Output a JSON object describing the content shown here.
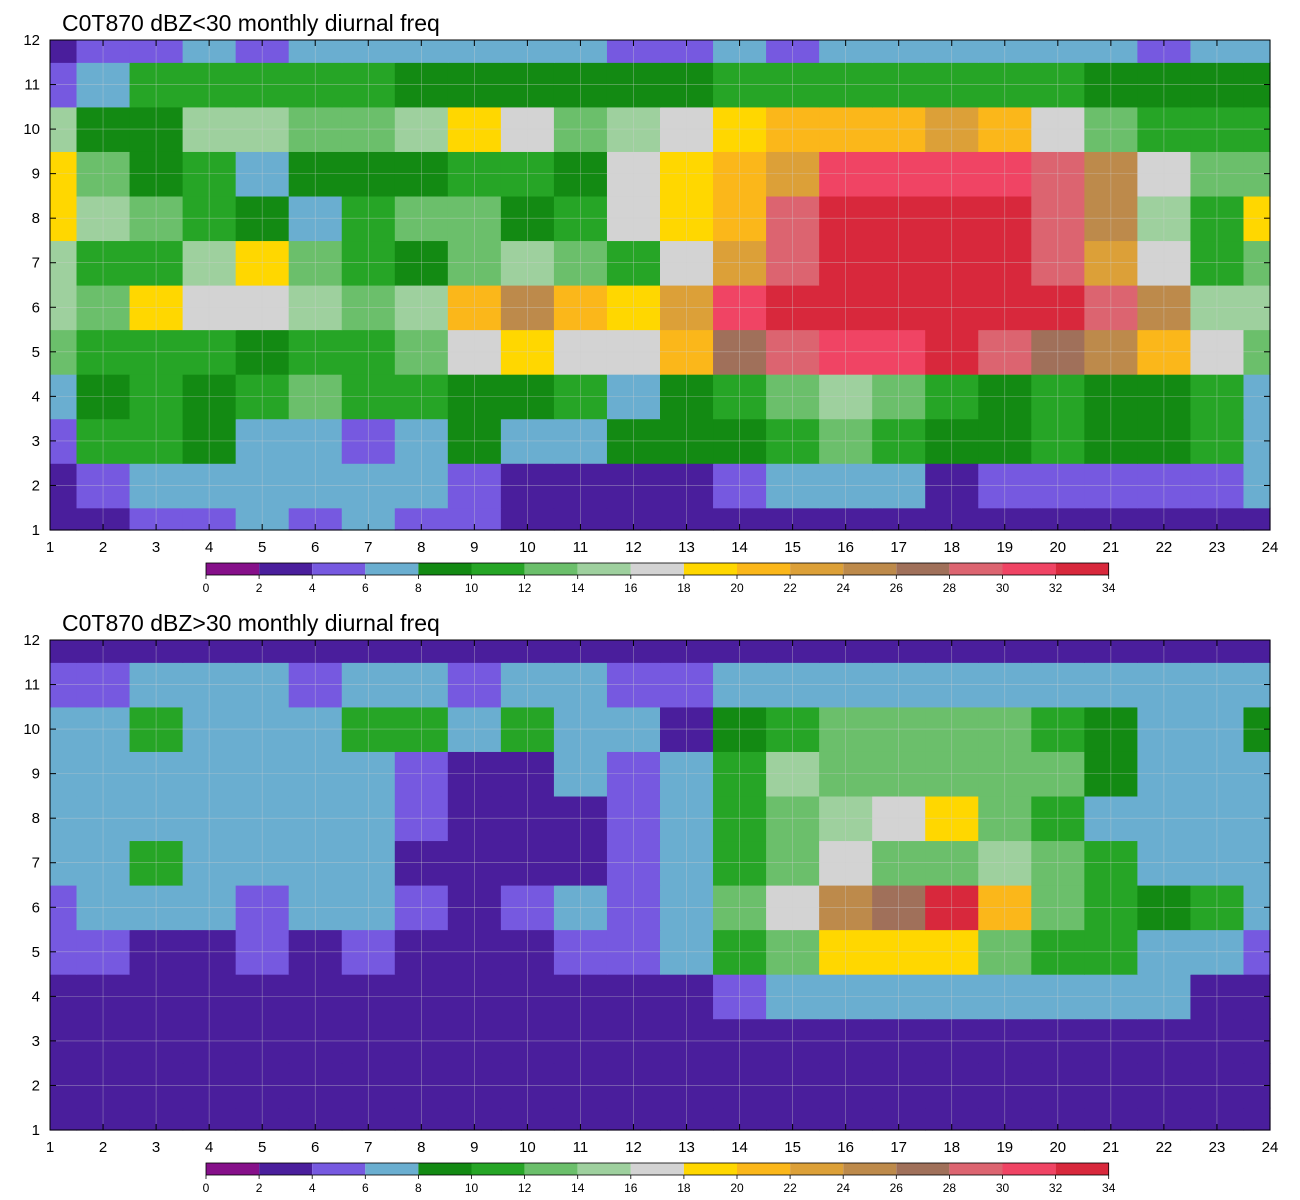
{
  "chart_data": [
    {
      "type": "heatmap",
      "title": "C0T870 dBZ<30 monthly diurnal freq",
      "x_ticks": [
        1,
        2,
        3,
        4,
        5,
        6,
        7,
        8,
        9,
        10,
        11,
        12,
        13,
        14,
        15,
        16,
        17,
        18,
        19,
        20,
        21,
        22,
        23,
        24
      ],
      "y_ticks": [
        1,
        2,
        3,
        4,
        5,
        6,
        7,
        8,
        9,
        10,
        11,
        12
      ],
      "xlim": [
        1,
        24
      ],
      "ylim": [
        1,
        12
      ],
      "grid": true,
      "colorbar": {
        "levels": [
          0,
          2,
          4,
          6,
          8,
          10,
          12,
          14,
          16,
          18,
          20,
          22,
          24,
          26,
          28,
          30,
          32,
          34
        ],
        "colors": [
          "#86108a",
          "#4a1e9c",
          "#7659e0",
          "#6aaed0",
          "#138a13",
          "#26a526",
          "#6bbf6b",
          "#9ed09e",
          "#d3d3d3",
          "#ffd700",
          "#fbb71a",
          "#dca038",
          "#bd8a4b",
          "#a0705a",
          "#dc6470",
          "#f04464",
          "#d8283c"
        ]
      },
      "grid_values": [
        [
          1,
          1,
          2,
          2,
          3,
          2,
          3,
          2,
          2,
          1,
          1,
          1,
          1,
          1,
          1,
          1,
          1,
          1,
          1,
          1,
          1,
          1,
          1,
          1
        ],
        [
          1,
          2,
          3,
          3,
          3,
          3,
          3,
          3,
          2,
          1,
          1,
          1,
          1,
          2,
          3,
          3,
          3,
          1,
          2,
          2,
          2,
          2,
          2,
          3
        ],
        [
          2,
          5,
          5,
          4,
          3,
          3,
          2,
          3,
          4,
          3,
          3,
          4,
          4,
          4,
          5,
          6,
          5,
          4,
          4,
          5,
          4,
          4,
          5,
          3
        ],
        [
          3,
          4,
          5,
          4,
          5,
          6,
          5,
          5,
          4,
          4,
          5,
          3,
          4,
          5,
          6,
          7,
          6,
          5,
          4,
          5,
          4,
          4,
          5,
          3
        ],
        [
          6,
          5,
          5,
          5,
          4,
          5,
          5,
          6,
          8,
          9,
          8,
          8,
          10,
          13,
          14,
          15,
          15,
          16,
          14,
          13,
          12,
          10,
          8,
          6
        ],
        [
          7,
          6,
          9,
          8,
          8,
          7,
          6,
          7,
          10,
          12,
          10,
          9,
          11,
          15,
          20,
          23,
          24,
          30,
          21,
          16,
          14,
          12,
          7,
          7
        ],
        [
          7,
          5,
          5,
          7,
          9,
          6,
          5,
          4,
          6,
          7,
          6,
          5,
          8,
          11,
          14,
          16,
          17,
          16,
          16,
          14,
          11,
          8,
          5,
          6
        ],
        [
          9,
          7,
          6,
          5,
          4,
          3,
          5,
          6,
          6,
          4,
          5,
          8,
          9,
          10,
          14,
          20,
          17,
          16,
          16,
          14,
          12,
          7,
          5,
          9
        ],
        [
          9,
          6,
          4,
          5,
          3,
          4,
          4,
          4,
          5,
          5,
          4,
          8,
          9,
          10,
          11,
          15,
          15,
          15,
          15,
          14,
          12,
          8,
          6,
          6
        ],
        [
          7,
          4,
          4,
          7,
          7,
          6,
          6,
          7,
          9,
          8,
          6,
          7,
          8,
          9,
          10,
          10,
          10,
          11,
          10,
          8,
          6,
          5,
          5,
          5
        ],
        [
          2,
          3,
          5,
          5,
          5,
          5,
          5,
          4,
          4,
          4,
          4,
          4,
          4,
          5,
          5,
          5,
          5,
          5,
          5,
          5,
          4,
          4,
          4,
          4
        ],
        [
          1,
          2,
          2,
          3,
          2,
          3,
          3,
          3,
          3,
          3,
          3,
          2,
          2,
          3,
          2,
          3,
          3,
          3,
          3,
          3,
          3,
          2,
          3,
          3
        ]
      ]
    },
    {
      "type": "heatmap",
      "title": "C0T870 dBZ>30 monthly diurnal freq",
      "x_ticks": [
        1,
        2,
        3,
        4,
        5,
        6,
        7,
        8,
        9,
        10,
        11,
        12,
        13,
        14,
        15,
        16,
        17,
        18,
        19,
        20,
        21,
        22,
        23,
        24
      ],
      "y_ticks": [
        1,
        2,
        3,
        4,
        5,
        6,
        7,
        8,
        9,
        10,
        11,
        12
      ],
      "xlim": [
        1,
        24
      ],
      "ylim": [
        1,
        12
      ],
      "grid": true,
      "colorbar": {
        "levels": [
          0,
          2,
          4,
          6,
          8,
          10,
          12,
          14,
          16,
          18,
          20,
          22,
          24,
          26,
          28,
          30,
          32,
          34
        ],
        "colors": [
          "#86108a",
          "#4a1e9c",
          "#7659e0",
          "#6aaed0",
          "#138a13",
          "#26a526",
          "#6bbf6b",
          "#9ed09e",
          "#d3d3d3",
          "#ffd700",
          "#fbb71a",
          "#dca038",
          "#bd8a4b",
          "#a0705a",
          "#dc6470",
          "#f04464",
          "#d8283c"
        ]
      },
      "grid_values": [
        [
          1,
          1,
          1,
          1,
          1,
          1,
          1,
          1,
          1,
          1,
          1,
          1,
          1,
          1,
          1,
          1,
          1,
          1,
          1,
          1,
          1,
          1,
          1,
          1
        ],
        [
          1,
          1,
          1,
          1,
          1,
          1,
          1,
          1,
          1,
          1,
          1,
          1,
          1,
          1,
          1,
          1,
          1,
          1,
          1,
          1,
          1,
          1,
          1,
          1
        ],
        [
          1,
          1,
          1,
          1,
          1,
          1,
          1,
          1,
          1,
          1,
          1,
          1,
          1,
          1,
          1,
          1,
          1,
          1,
          1,
          1,
          1,
          1,
          1,
          1
        ],
        [
          1,
          1,
          1,
          1,
          1,
          1,
          1,
          1,
          1,
          1,
          1,
          1,
          1,
          2,
          3,
          3,
          3,
          3,
          3,
          3,
          3,
          3,
          1,
          1
        ],
        [
          2,
          2,
          1,
          1,
          2,
          1,
          2,
          1,
          1,
          1,
          2,
          2,
          3,
          5,
          6,
          9,
          9,
          9,
          6,
          5,
          5,
          3,
          3,
          2
        ],
        [
          2,
          3,
          3,
          3,
          2,
          3,
          3,
          2,
          1,
          2,
          3,
          2,
          3,
          6,
          8,
          12,
          13,
          16,
          10,
          6,
          5,
          4,
          5,
          3
        ],
        [
          3,
          3,
          5,
          3,
          3,
          3,
          3,
          1,
          1,
          1,
          1,
          2,
          3,
          5,
          6,
          8,
          6,
          6,
          7,
          6,
          5,
          3,
          3,
          3
        ],
        [
          3,
          3,
          3,
          3,
          3,
          3,
          3,
          2,
          1,
          1,
          1,
          2,
          3,
          5,
          6,
          7,
          8,
          9,
          6,
          5,
          3,
          3,
          3,
          3
        ],
        [
          3,
          3,
          3,
          3,
          3,
          3,
          3,
          2,
          1,
          1,
          3,
          2,
          3,
          5,
          7,
          6,
          6,
          6,
          6,
          6,
          4,
          3,
          3,
          3
        ],
        [
          3,
          3,
          5,
          3,
          3,
          3,
          5,
          5,
          3,
          5,
          3,
          3,
          1,
          4,
          5,
          6,
          6,
          6,
          6,
          5,
          4,
          3,
          3,
          4
        ],
        [
          2,
          2,
          3,
          3,
          3,
          2,
          3,
          3,
          2,
          3,
          3,
          2,
          2,
          3,
          3,
          3,
          3,
          3,
          3,
          3,
          3,
          3,
          3,
          3
        ],
        [
          1,
          1,
          1,
          1,
          1,
          1,
          1,
          1,
          1,
          1,
          1,
          1,
          1,
          1,
          1,
          1,
          1,
          1,
          1,
          1,
          1,
          1,
          1,
          1
        ]
      ]
    }
  ]
}
